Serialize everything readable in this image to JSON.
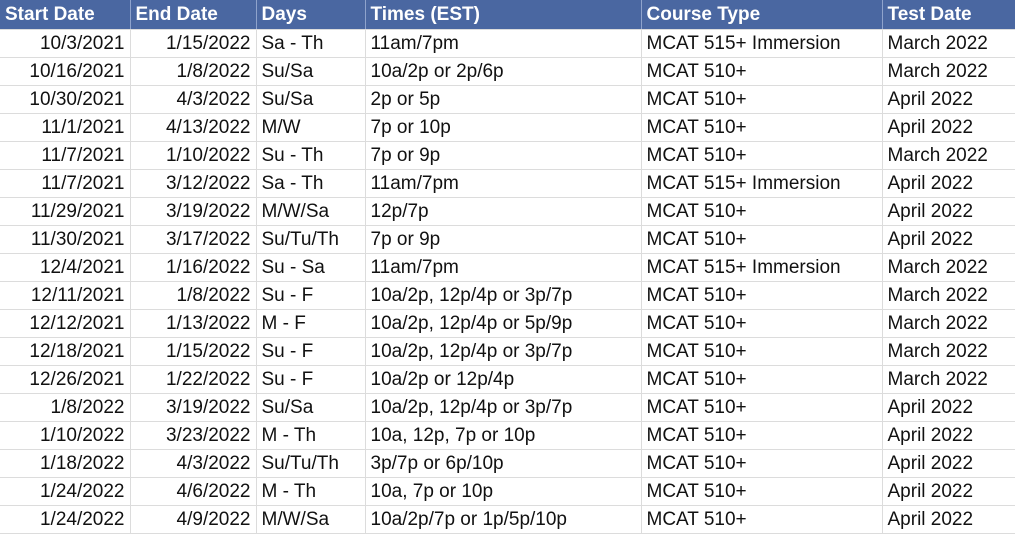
{
  "header_color": "#4a67a1",
  "columns": [
    "Start Date",
    "End Date",
    "Days",
    "Times (EST)",
    "Course Type",
    "Test Date"
  ],
  "rows": [
    [
      "10/3/2021",
      "1/15/2022",
      "Sa - Th",
      "11am/7pm",
      "MCAT 515+ Immersion",
      "March 2022"
    ],
    [
      "10/16/2021",
      "1/8/2022",
      "Su/Sa",
      "10a/2p or 2p/6p",
      "MCAT 510+",
      "March 2022"
    ],
    [
      "10/30/2021",
      "4/3/2022",
      "Su/Sa",
      "2p or 5p",
      "MCAT 510+",
      "April 2022"
    ],
    [
      "11/1/2021",
      "4/13/2022",
      "M/W",
      "7p or 10p",
      "MCAT 510+",
      "April 2022"
    ],
    [
      "11/7/2021",
      "1/10/2022",
      "Su - Th",
      "7p or 9p",
      "MCAT 510+",
      "March 2022"
    ],
    [
      "11/7/2021",
      "3/12/2022",
      "Sa - Th",
      "11am/7pm",
      "MCAT 515+ Immersion",
      "April 2022"
    ],
    [
      "11/29/2021",
      "3/19/2022",
      "M/W/Sa",
      "12p/7p",
      "MCAT 510+",
      "April 2022"
    ],
    [
      "11/30/2021",
      "3/17/2022",
      "Su/Tu/Th",
      "7p or 9p",
      "MCAT 510+",
      "April 2022"
    ],
    [
      "12/4/2021",
      "1/16/2022",
      "Su - Sa",
      "11am/7pm",
      "MCAT 515+ Immersion",
      "March 2022"
    ],
    [
      "12/11/2021",
      "1/8/2022",
      "Su - F",
      "10a/2p, 12p/4p or 3p/7p",
      "MCAT 510+",
      "March 2022"
    ],
    [
      "12/12/2021",
      "1/13/2022",
      "M - F",
      "10a/2p, 12p/4p or 5p/9p",
      "MCAT 510+",
      "March 2022"
    ],
    [
      "12/18/2021",
      "1/15/2022",
      "Su - F",
      "10a/2p, 12p/4p or 3p/7p",
      "MCAT 510+",
      "March 2022"
    ],
    [
      "12/26/2021",
      "1/22/2022",
      "Su - F",
      "10a/2p or 12p/4p",
      "MCAT 510+",
      "March 2022"
    ],
    [
      "1/8/2022",
      "3/19/2022",
      "Su/Sa",
      "10a/2p, 12p/4p or 3p/7p",
      "MCAT 510+",
      "April 2022"
    ],
    [
      "1/10/2022",
      "3/23/2022",
      "M - Th",
      "10a, 12p, 7p or 10p",
      "MCAT 510+",
      "April 2022"
    ],
    [
      "1/18/2022",
      "4/3/2022",
      "Su/Tu/Th",
      "3p/7p or 6p/10p",
      "MCAT 510+",
      "April 2022"
    ],
    [
      "1/24/2022",
      "4/6/2022",
      "M - Th",
      "10a, 7p or 10p",
      "MCAT 510+",
      "April 2022"
    ],
    [
      "1/24/2022",
      "4/9/2022",
      "M/W/Sa",
      "10a/2p/7p or 1p/5p/10p",
      "MCAT 510+",
      "April 2022"
    ]
  ]
}
